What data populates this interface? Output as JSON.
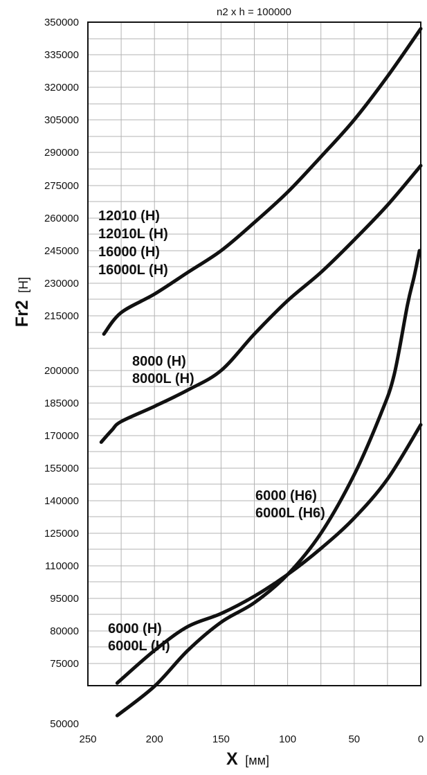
{
  "chart_data": {
    "type": "line",
    "title": "n2 x h = 100000",
    "xlabel": "X",
    "xunit": "[мм]",
    "ylabel": "Fr2",
    "yunit": "[Н]",
    "xlim": [
      250,
      0
    ],
    "x_ticks": [
      "250",
      "200",
      "150",
      "100",
      "50",
      "0"
    ],
    "y_ticks": [
      "350000",
      "335000",
      "320000",
      "305000",
      "290000",
      "275000",
      "260000",
      "245000",
      "230000",
      "215000",
      "200000",
      "185000",
      "170000",
      "155000",
      "140000",
      "125000",
      "110000",
      "95000",
      "80000",
      "75000",
      "50000"
    ],
    "grid": true,
    "series": [
      {
        "id": "s12010",
        "label_lines": [
          "12010 (Н)",
          "12010L (Н)",
          "16000 (Н)",
          "16000L (Н)"
        ],
        "x": [
          238,
          225,
          200,
          175,
          150,
          125,
          100,
          75,
          50,
          25,
          0
        ],
        "y": [
          210000,
          216500,
          225000,
          235000,
          245000,
          258000,
          272000,
          288000,
          305000,
          325000,
          347000
        ]
      },
      {
        "id": "s8000",
        "label_lines": [
          "8000 (Н)",
          "8000L (Н)"
        ],
        "x": [
          240,
          232,
          225,
          200,
          175,
          150,
          125,
          100,
          75,
          50,
          25,
          0
        ],
        "y": [
          167000,
          172500,
          176500,
          183500,
          191000,
          200000,
          210000,
          222000,
          235000,
          250000,
          266000,
          284000
        ]
      },
      {
        "id": "s6000h6",
        "label_lines": [
          "6000 (Н6)",
          "6000L (Н6)"
        ],
        "x": [
          228,
          200,
          175,
          150,
          125,
          100,
          75,
          50,
          30,
          20,
          10,
          5,
          1
        ],
        "y": [
          67000,
          71500,
          77000,
          84000,
          93000,
          106000,
          125000,
          152000,
          180000,
          198000,
          220000,
          233000,
          245000
        ]
      },
      {
        "id": "s6000h",
        "label_lines": [
          "6000 (Н)",
          "6000L (Н)"
        ],
        "x": [
          228,
          200,
          175,
          150,
          125,
          100,
          75,
          50,
          25,
          0
        ],
        "y": [
          72000,
          77000,
          82000,
          88000,
          96000,
          106000,
          118000,
          132000,
          150000,
          175000
        ]
      }
    ]
  }
}
